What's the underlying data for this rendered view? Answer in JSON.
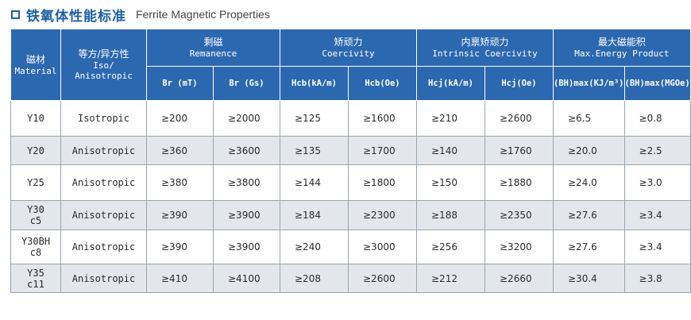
{
  "title": {
    "cn": "铁氧体性能标准",
    "en": "Ferrite Magnetic Properties"
  },
  "headers": {
    "material": {
      "cn": "磁材",
      "en": "Material"
    },
    "iso": {
      "cn": "等方/异方性",
      "en1": "Iso/",
      "en2": "Anisotropic"
    },
    "remanence": {
      "cn": "剩磁",
      "en": "Remanence"
    },
    "coercivity": {
      "cn": "矫顽力",
      "en": "Coercivity"
    },
    "intrinsic": {
      "cn": "内禀矫顽力",
      "en": "Intrinsic Coercivity"
    },
    "energy": {
      "cn": "最大磁能积",
      "en": "Max.Energy Product"
    }
  },
  "subheaders": [
    "Br (mT)",
    "Br (Gs)",
    "Hcb(kA/m)",
    "Hcb(Oe)",
    "Hcj(kA/m)",
    "Hcj(Oe)",
    "(BH)max(KJ/m³)",
    "(BH)max(MGOe)"
  ],
  "rows": [
    {
      "material": [
        "Y10"
      ],
      "iso": "Isotropic",
      "br_mt": "≥200",
      "br_gs": "≥2000",
      "hcb_ka": "≥125",
      "hcb_oe": "≥1600",
      "hcj_ka": "≥210",
      "hcj_oe": "≥2600",
      "bh_kj": "≥6.5",
      "bh_mgoe": "≥0.8"
    },
    {
      "material": [
        "Y20"
      ],
      "iso": "Anisotropic",
      "br_mt": "≥360",
      "br_gs": "≥3600",
      "hcb_ka": "≥135",
      "hcb_oe": "≥1700",
      "hcj_ka": "≥140",
      "hcj_oe": "≥1760",
      "bh_kj": "≥20.0",
      "bh_mgoe": "≥2.5"
    },
    {
      "material": [
        "Y25"
      ],
      "iso": "Anisotropic",
      "br_mt": "≥380",
      "br_gs": "≥3800",
      "hcb_ka": "≥144",
      "hcb_oe": "≥1800",
      "hcj_ka": "≥150",
      "hcj_oe": "≥1880",
      "bh_kj": "≥24.0",
      "bh_mgoe": "≥3.0"
    },
    {
      "material": [
        "Y30",
        "c5"
      ],
      "iso": "Anisotropic",
      "br_mt": "≥390",
      "br_gs": "≥3900",
      "hcb_ka": "≥184",
      "hcb_oe": "≥2300",
      "hcj_ka": "≥188",
      "hcj_oe": "≥2350",
      "bh_kj": "≥27.6",
      "bh_mgoe": "≥3.4"
    },
    {
      "material": [
        "Y30BH",
        "c8"
      ],
      "iso": "Anisotropic",
      "br_mt": "≥390",
      "br_gs": "≥3900",
      "hcb_ka": "≥240",
      "hcb_oe": "≥3000",
      "hcj_ka": "≥256",
      "hcj_oe": "≥3200",
      "bh_kj": "≥27.6",
      "bh_mgoe": "≥3.4"
    },
    {
      "material": [
        "Y35",
        "c11"
      ],
      "iso": "Anisotropic",
      "br_mt": "≥410",
      "br_gs": "≥4100",
      "hcb_ka": "≥208",
      "hcb_oe": "≥2600",
      "hcj_ka": "≥212",
      "hcj_oe": "≥2660",
      "bh_kj": "≥30.4",
      "bh_mgoe": "≥3.8"
    }
  ]
}
